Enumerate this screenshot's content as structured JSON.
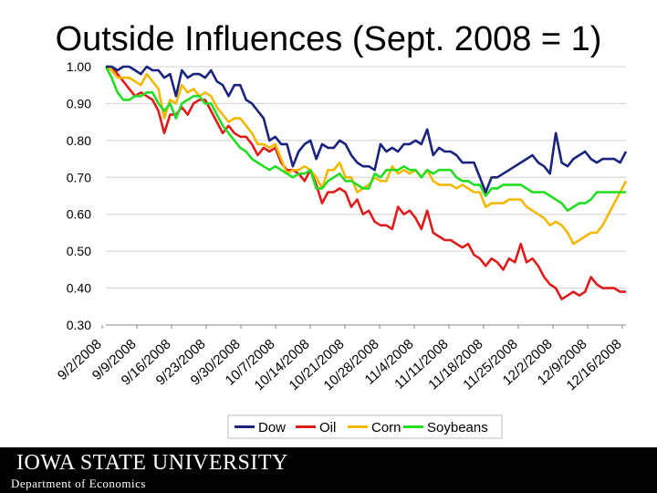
{
  "slide": {
    "title": "Outside Influences (Sept. 2008 = 1)",
    "logo_text": "IOWA STATE UNIVERSITY",
    "department": "Department of Economics"
  },
  "colors": {
    "dow": "#1a237e",
    "oil": "#e01b1b",
    "corn": "#f5b800",
    "soybeans": "#22dd22",
    "footer_bg": "#000000",
    "grid": "#d0d0d0"
  },
  "chart_data": {
    "type": "line",
    "title": "Outside Influences (Sept. 2008 = 1)",
    "xlabel": "",
    "ylabel": "",
    "ylim": [
      0.3,
      1.0
    ],
    "y_ticks": [
      "1.00",
      "0.90",
      "0.80",
      "0.70",
      "0.60",
      "0.50",
      "0.40",
      "0.30"
    ],
    "y_tick_values": [
      1.0,
      0.9,
      0.8,
      0.7,
      0.6,
      0.5,
      0.4,
      0.3
    ],
    "x_tick_labels": [
      "9/2/2008",
      "9/9/2008",
      "9/16/2008",
      "9/23/2008",
      "9/30/2008",
      "10/7/2008",
      "10/14/2008",
      "10/21/2008",
      "10/28/2008",
      "11/4/2008",
      "11/11/2008",
      "11/18/2008",
      "11/25/2008",
      "12/2/2008",
      "12/9/2008",
      "12/16/2008"
    ],
    "legend": {
      "position": "bottom"
    },
    "series": [
      {
        "name": "Dow",
        "color": "#1a237e",
        "values": [
          1.0,
          1.0,
          0.99,
          1.0,
          1.0,
          0.99,
          0.98,
          1.0,
          0.99,
          0.99,
          0.97,
          0.98,
          0.92,
          0.99,
          0.97,
          0.98,
          0.98,
          0.97,
          0.99,
          0.96,
          0.95,
          0.92,
          0.95,
          0.95,
          0.91,
          0.9,
          0.88,
          0.86,
          0.8,
          0.81,
          0.79,
          0.79,
          0.73,
          0.77,
          0.79,
          0.8,
          0.75,
          0.79,
          0.78,
          0.78,
          0.8,
          0.79,
          0.76,
          0.74,
          0.73,
          0.73,
          0.72,
          0.79,
          0.77,
          0.78,
          0.77,
          0.79,
          0.79,
          0.8,
          0.79,
          0.83,
          0.76,
          0.78,
          0.77,
          0.77,
          0.76,
          0.74,
          0.74,
          0.74,
          0.7,
          0.66,
          0.7,
          0.7,
          0.71,
          0.72,
          0.73,
          0.74,
          0.75,
          0.76,
          0.74,
          0.73,
          0.71,
          0.82,
          0.74,
          0.73,
          0.75,
          0.76,
          0.77,
          0.75,
          0.74,
          0.75,
          0.75,
          0.75,
          0.74,
          0.77
        ]
      },
      {
        "name": "Oil",
        "color": "#e01b1b",
        "values": [
          1.0,
          1.0,
          0.98,
          0.96,
          0.94,
          0.92,
          0.93,
          0.92,
          0.91,
          0.88,
          0.82,
          0.87,
          0.87,
          0.89,
          0.87,
          0.9,
          0.91,
          0.91,
          0.88,
          0.85,
          0.82,
          0.84,
          0.82,
          0.81,
          0.81,
          0.79,
          0.76,
          0.78,
          0.77,
          0.78,
          0.74,
          0.72,
          0.72,
          0.71,
          0.69,
          0.72,
          0.68,
          0.63,
          0.66,
          0.66,
          0.67,
          0.66,
          0.62,
          0.64,
          0.6,
          0.61,
          0.58,
          0.57,
          0.57,
          0.56,
          0.62,
          0.6,
          0.61,
          0.59,
          0.56,
          0.61,
          0.55,
          0.54,
          0.53,
          0.53,
          0.52,
          0.51,
          0.52,
          0.49,
          0.48,
          0.46,
          0.48,
          0.47,
          0.45,
          0.48,
          0.47,
          0.52,
          0.47,
          0.48,
          0.46,
          0.43,
          0.41,
          0.4,
          0.37,
          0.38,
          0.39,
          0.38,
          0.39,
          0.43,
          0.41,
          0.4,
          0.4,
          0.4,
          0.39,
          0.39
        ]
      },
      {
        "name": "Corn",
        "color": "#f5b800",
        "values": [
          1.0,
          0.99,
          0.97,
          0.97,
          0.97,
          0.96,
          0.95,
          0.98,
          0.96,
          0.94,
          0.86,
          0.91,
          0.9,
          0.95,
          0.93,
          0.94,
          0.92,
          0.93,
          0.92,
          0.89,
          0.87,
          0.85,
          0.86,
          0.86,
          0.84,
          0.82,
          0.79,
          0.79,
          0.78,
          0.79,
          0.75,
          0.71,
          0.72,
          0.72,
          0.73,
          0.72,
          0.7,
          0.67,
          0.72,
          0.72,
          0.74,
          0.7,
          0.7,
          0.66,
          0.67,
          0.68,
          0.7,
          0.69,
          0.69,
          0.73,
          0.71,
          0.72,
          0.71,
          0.72,
          0.7,
          0.72,
          0.69,
          0.68,
          0.68,
          0.68,
          0.67,
          0.68,
          0.67,
          0.66,
          0.66,
          0.62,
          0.63,
          0.63,
          0.63,
          0.64,
          0.64,
          0.64,
          0.62,
          0.61,
          0.6,
          0.59,
          0.57,
          0.58,
          0.57,
          0.55,
          0.52,
          0.53,
          0.54,
          0.55,
          0.55,
          0.57,
          0.6,
          0.63,
          0.66,
          0.69
        ]
      },
      {
        "name": "Soybeans",
        "color": "#22dd22",
        "values": [
          1.0,
          0.97,
          0.93,
          0.91,
          0.91,
          0.92,
          0.92,
          0.93,
          0.93,
          0.9,
          0.88,
          0.9,
          0.86,
          0.9,
          0.91,
          0.92,
          0.92,
          0.9,
          0.9,
          0.87,
          0.84,
          0.82,
          0.8,
          0.78,
          0.77,
          0.75,
          0.74,
          0.73,
          0.72,
          0.73,
          0.72,
          0.71,
          0.7,
          0.71,
          0.71,
          0.72,
          0.67,
          0.67,
          0.69,
          0.7,
          0.71,
          0.69,
          0.69,
          0.68,
          0.67,
          0.67,
          0.71,
          0.7,
          0.72,
          0.72,
          0.72,
          0.73,
          0.72,
          0.72,
          0.7,
          0.72,
          0.71,
          0.72,
          0.72,
          0.72,
          0.7,
          0.69,
          0.69,
          0.68,
          0.68,
          0.65,
          0.67,
          0.67,
          0.68,
          0.68,
          0.68,
          0.68,
          0.67,
          0.66,
          0.66,
          0.66,
          0.65,
          0.64,
          0.63,
          0.61,
          0.62,
          0.63,
          0.63,
          0.64,
          0.66,
          0.66,
          0.66,
          0.66,
          0.66,
          0.66
        ]
      }
    ]
  }
}
